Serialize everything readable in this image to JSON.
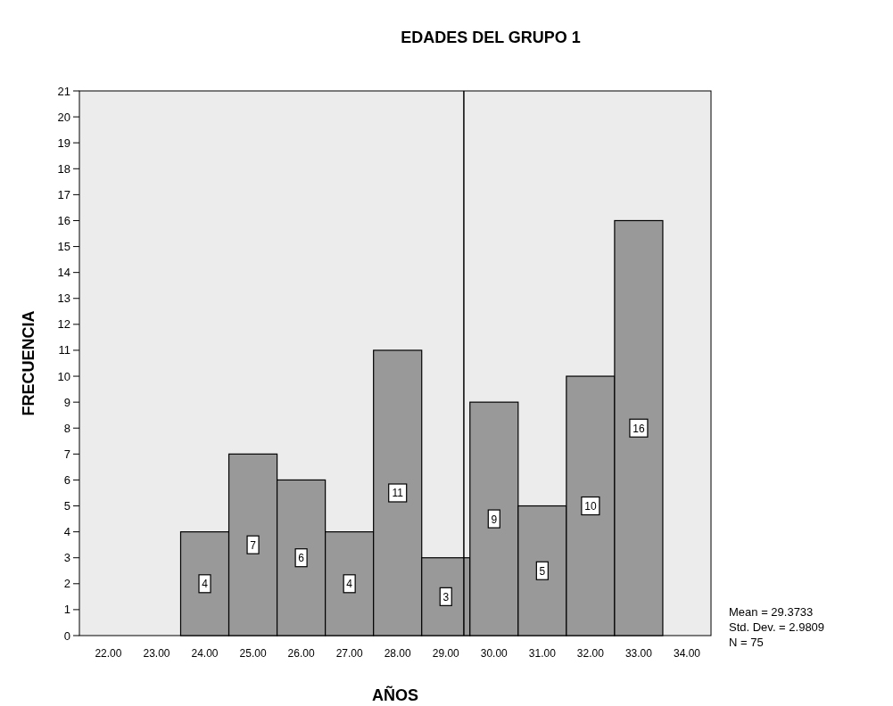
{
  "chart_data": {
    "type": "histogram",
    "title": "EDADES DEL GRUPO 1",
    "xlabel": "AÑOS",
    "ylabel": "FRECUENCIA",
    "bins": [
      23.5,
      24.5,
      25.5,
      26.5,
      27.5,
      28.5,
      29.5,
      30.5,
      31.5,
      32.5,
      33.5
    ],
    "values": [
      4,
      7,
      6,
      4,
      11,
      3,
      9,
      5,
      10,
      16
    ],
    "color": "#999999",
    "data_labels": true,
    "grid": false,
    "xlim": [
      21.4,
      34.5
    ],
    "xticks": [
      {
        "value": 22,
        "label": "22.00"
      },
      {
        "value": 23,
        "label": "23.00"
      },
      {
        "value": 24,
        "label": "24.00"
      },
      {
        "value": 25,
        "label": "25.00"
      },
      {
        "value": 26,
        "label": "26.00"
      },
      {
        "value": 27,
        "label": "27.00"
      },
      {
        "value": 28,
        "label": "28.00"
      },
      {
        "value": 29,
        "label": "29.00"
      },
      {
        "value": 30,
        "label": "30.00"
      },
      {
        "value": 31,
        "label": "31.00"
      },
      {
        "value": 32,
        "label": "32.00"
      },
      {
        "value": 33,
        "label": "33.00"
      },
      {
        "value": 34,
        "label": "34.00"
      }
    ],
    "ylim": [
      0,
      21
    ],
    "yticks": [
      0,
      1,
      2,
      3,
      4,
      5,
      6,
      7,
      8,
      9,
      10,
      11,
      12,
      13,
      14,
      15,
      16,
      17,
      18,
      19,
      20,
      21
    ],
    "ref_lines": [
      {
        "axis": "x",
        "value": 29.3733,
        "color": "#000000"
      }
    ],
    "annotations": [
      "Mean = 29.3733",
      "Std. Dev. = 2.9809",
      "N = 75"
    ]
  }
}
